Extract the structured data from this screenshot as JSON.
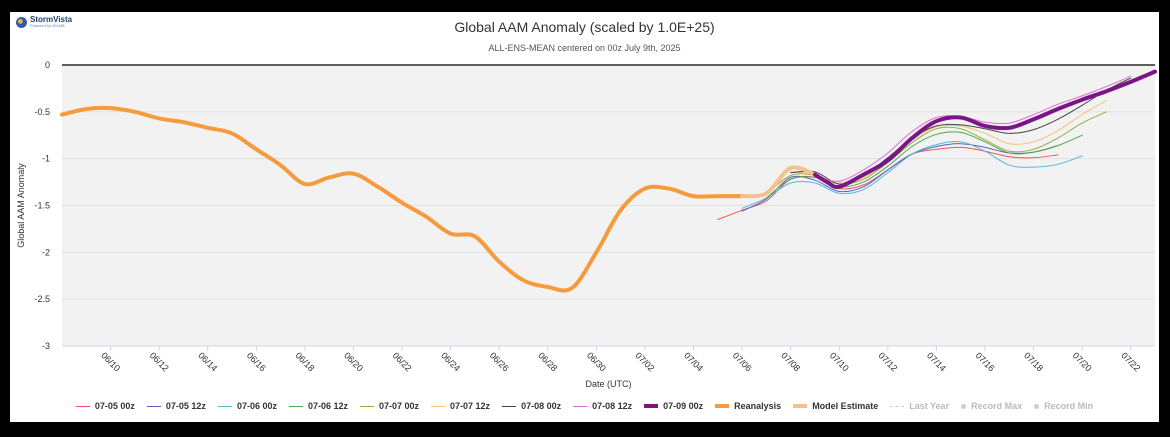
{
  "brand": {
    "name": "StormVista",
    "tagline": "Powered by WXMB"
  },
  "chart_data": {
    "type": "line",
    "title": "Global AAM Anomaly (scaled by 1.0E+25)",
    "subtitle": "ALL-ENS-MEAN centered on 00z July 9th, 2025",
    "xlabel": "Date (UTC)",
    "ylabel": "Global AAM Anomaly",
    "x_range": [
      "2025-06-08",
      "2025-07-23"
    ],
    "ylim": [
      -3,
      0
    ],
    "yticks": [
      0,
      -0.5,
      -1,
      -1.5,
      -2,
      -2.5,
      -3
    ],
    "xticks": [
      "06/10",
      "06/12",
      "06/14",
      "06/16",
      "06/18",
      "06/20",
      "06/22",
      "06/24",
      "06/26",
      "06/28",
      "06/30",
      "07/02",
      "07/04",
      "07/06",
      "07/08",
      "07/10",
      "07/12",
      "07/14",
      "07/16",
      "07/18",
      "07/20",
      "07/22"
    ],
    "plot_background": "#f2f2f2",
    "legend_position": "bottom",
    "series": [
      {
        "name": "07-05 00z",
        "color": "#e8575a",
        "width": 1,
        "points": [
          [
            "2025-07-05",
            -1.65
          ],
          [
            "2025-07-06",
            -1.55
          ],
          [
            "2025-07-07",
            -1.45
          ],
          [
            "2025-07-08",
            -1.22
          ],
          [
            "2025-07-09",
            -1.2
          ],
          [
            "2025-07-10",
            -1.32
          ],
          [
            "2025-07-11",
            -1.28
          ],
          [
            "2025-07-12",
            -1.12
          ],
          [
            "2025-07-13",
            -0.95
          ],
          [
            "2025-07-14",
            -0.9
          ],
          [
            "2025-07-15",
            -0.88
          ],
          [
            "2025-07-16",
            -0.92
          ],
          [
            "2025-07-17",
            -0.98
          ],
          [
            "2025-07-18",
            -0.99
          ],
          [
            "2025-07-19",
            -0.96
          ]
        ]
      },
      {
        "name": "07-05 12z",
        "color": "#5b5ec9",
        "width": 1,
        "points": [
          [
            "2025-07-06",
            -1.56
          ],
          [
            "2025-07-07",
            -1.43
          ],
          [
            "2025-07-08",
            -1.2
          ],
          [
            "2025-07-09",
            -1.23
          ],
          [
            "2025-07-10",
            -1.35
          ],
          [
            "2025-07-11",
            -1.3
          ],
          [
            "2025-07-12",
            -1.12
          ],
          [
            "2025-07-13",
            -0.95
          ],
          [
            "2025-07-14",
            -0.87
          ],
          [
            "2025-07-15",
            -0.84
          ],
          [
            "2025-07-16",
            -0.88
          ],
          [
            "2025-07-17",
            -0.94
          ],
          [
            "2025-07-18",
            -0.93
          ],
          [
            "2025-07-19",
            -0.86
          ]
        ]
      },
      {
        "name": "07-06 00z",
        "color": "#55b8d8",
        "width": 1,
        "points": [
          [
            "2025-07-06",
            -1.53
          ],
          [
            "2025-07-07",
            -1.42
          ],
          [
            "2025-07-08",
            -1.26
          ],
          [
            "2025-07-09",
            -1.26
          ],
          [
            "2025-07-10",
            -1.37
          ],
          [
            "2025-07-11",
            -1.33
          ],
          [
            "2025-07-12",
            -1.15
          ],
          [
            "2025-07-13",
            -0.95
          ],
          [
            "2025-07-14",
            -0.85
          ],
          [
            "2025-07-15",
            -0.82
          ],
          [
            "2025-07-16",
            -0.92
          ],
          [
            "2025-07-17",
            -1.07
          ],
          [
            "2025-07-18",
            -1.09
          ],
          [
            "2025-07-19",
            -1.06
          ],
          [
            "2025-07-20",
            -0.97
          ]
        ]
      },
      {
        "name": "07-06 12z",
        "color": "#4da84d",
        "width": 1,
        "points": [
          [
            "2025-07-07",
            -1.42
          ],
          [
            "2025-07-08",
            -1.22
          ],
          [
            "2025-07-09",
            -1.2
          ],
          [
            "2025-07-10",
            -1.3
          ],
          [
            "2025-07-11",
            -1.25
          ],
          [
            "2025-07-12",
            -1.08
          ],
          [
            "2025-07-13",
            -0.87
          ],
          [
            "2025-07-14",
            -0.74
          ],
          [
            "2025-07-15",
            -0.72
          ],
          [
            "2025-07-16",
            -0.82
          ],
          [
            "2025-07-17",
            -0.94
          ],
          [
            "2025-07-18",
            -0.93
          ],
          [
            "2025-07-19",
            -0.86
          ],
          [
            "2025-07-20",
            -0.75
          ]
        ]
      },
      {
        "name": "07-07 00z",
        "color": "#9aab3a",
        "width": 1,
        "points": [
          [
            "2025-07-07",
            -1.38
          ],
          [
            "2025-07-08",
            -1.18
          ],
          [
            "2025-07-09",
            -1.18
          ],
          [
            "2025-07-10",
            -1.27
          ],
          [
            "2025-07-11",
            -1.22
          ],
          [
            "2025-07-12",
            -1.04
          ],
          [
            "2025-07-13",
            -0.83
          ],
          [
            "2025-07-14",
            -0.68
          ],
          [
            "2025-07-15",
            -0.68
          ],
          [
            "2025-07-16",
            -0.8
          ],
          [
            "2025-07-17",
            -0.92
          ],
          [
            "2025-07-18",
            -0.9
          ],
          [
            "2025-07-19",
            -0.78
          ],
          [
            "2025-07-20",
            -0.62
          ],
          [
            "2025-07-21",
            -0.5
          ]
        ]
      },
      {
        "name": "07-07 12z",
        "color": "#f5c07a",
        "width": 1,
        "points": [
          [
            "2025-07-08",
            -1.14
          ],
          [
            "2025-07-09",
            -1.17
          ],
          [
            "2025-07-10",
            -1.25
          ],
          [
            "2025-07-11",
            -1.2
          ],
          [
            "2025-07-12",
            -1.02
          ],
          [
            "2025-07-13",
            -0.8
          ],
          [
            "2025-07-14",
            -0.66
          ],
          [
            "2025-07-15",
            -0.65
          ],
          [
            "2025-07-16",
            -0.73
          ],
          [
            "2025-07-17",
            -0.84
          ],
          [
            "2025-07-18",
            -0.82
          ],
          [
            "2025-07-19",
            -0.7
          ],
          [
            "2025-07-20",
            -0.53
          ],
          [
            "2025-07-21",
            -0.38
          ]
        ]
      },
      {
        "name": "07-08 00z",
        "color": "#444444",
        "width": 1,
        "points": [
          [
            "2025-07-08",
            -1.15
          ],
          [
            "2025-07-09",
            -1.14
          ],
          [
            "2025-07-10",
            -1.27
          ],
          [
            "2025-07-11",
            -1.18
          ],
          [
            "2025-07-12",
            -0.99
          ],
          [
            "2025-07-13",
            -0.78
          ],
          [
            "2025-07-14",
            -0.65
          ],
          [
            "2025-07-15",
            -0.64
          ],
          [
            "2025-07-16",
            -0.68
          ],
          [
            "2025-07-17",
            -0.73
          ],
          [
            "2025-07-18",
            -0.69
          ],
          [
            "2025-07-19",
            -0.58
          ],
          [
            "2025-07-20",
            -0.43
          ],
          [
            "2025-07-21",
            -0.27
          ],
          [
            "2025-07-22",
            -0.14
          ]
        ]
      },
      {
        "name": "07-08 12z",
        "color": "#e06be0",
        "width": 1,
        "points": [
          [
            "2025-07-09",
            -1.2
          ],
          [
            "2025-07-10",
            -1.24
          ],
          [
            "2025-07-11",
            -1.12
          ],
          [
            "2025-07-12",
            -0.94
          ],
          [
            "2025-07-13",
            -0.71
          ],
          [
            "2025-07-14",
            -0.56
          ],
          [
            "2025-07-15",
            -0.55
          ],
          [
            "2025-07-16",
            -0.61
          ],
          [
            "2025-07-17",
            -0.62
          ],
          [
            "2025-07-18",
            -0.53
          ],
          [
            "2025-07-19",
            -0.42
          ],
          [
            "2025-07-20",
            -0.33
          ],
          [
            "2025-07-21",
            -0.23
          ],
          [
            "2025-07-22",
            -0.12
          ]
        ]
      },
      {
        "name": "07-09 00z",
        "color": "#7a1585",
        "width": 4,
        "points": [
          [
            "2025-07-09",
            -1.17
          ],
          [
            "2025-07-09T12",
            -1.25
          ],
          [
            "2025-07-10",
            -1.3
          ],
          [
            "2025-07-11",
            -1.17
          ],
          [
            "2025-07-12",
            -1.02
          ],
          [
            "2025-07-13",
            -0.78
          ],
          [
            "2025-07-14",
            -0.6
          ],
          [
            "2025-07-15",
            -0.56
          ],
          [
            "2025-07-16",
            -0.65
          ],
          [
            "2025-07-17",
            -0.67
          ],
          [
            "2025-07-18",
            -0.58
          ],
          [
            "2025-07-19",
            -0.47
          ],
          [
            "2025-07-20",
            -0.37
          ],
          [
            "2025-07-21",
            -0.28
          ],
          [
            "2025-07-22",
            -0.18
          ],
          [
            "2025-07-23",
            -0.07
          ]
        ]
      },
      {
        "name": "Reanalysis",
        "color": "#f59b3d",
        "width": 4,
        "points": [
          [
            "2025-06-08",
            -0.53
          ],
          [
            "2025-06-09",
            -0.47
          ],
          [
            "2025-06-10",
            -0.46
          ],
          [
            "2025-06-11",
            -0.5
          ],
          [
            "2025-06-12",
            -0.57
          ],
          [
            "2025-06-13",
            -0.61
          ],
          [
            "2025-06-14",
            -0.67
          ],
          [
            "2025-06-15",
            -0.73
          ],
          [
            "2025-06-16",
            -0.9
          ],
          [
            "2025-06-17",
            -1.07
          ],
          [
            "2025-06-18",
            -1.27
          ],
          [
            "2025-06-19",
            -1.2
          ],
          [
            "2025-06-20",
            -1.16
          ],
          [
            "2025-06-21",
            -1.3
          ],
          [
            "2025-06-22",
            -1.47
          ],
          [
            "2025-06-23",
            -1.62
          ],
          [
            "2025-06-24",
            -1.8
          ],
          [
            "2025-06-25",
            -1.83
          ],
          [
            "2025-06-26",
            -2.1
          ],
          [
            "2025-06-27",
            -2.3
          ],
          [
            "2025-06-28",
            -2.37
          ],
          [
            "2025-06-29",
            -2.38
          ],
          [
            "2025-06-30",
            -2.0
          ],
          [
            "2025-07-01",
            -1.55
          ],
          [
            "2025-07-02",
            -1.32
          ],
          [
            "2025-07-03",
            -1.32
          ],
          [
            "2025-07-04",
            -1.4
          ],
          [
            "2025-07-05",
            -1.4
          ],
          [
            "2025-07-06",
            -1.4
          ]
        ]
      },
      {
        "name": "Model Estimate",
        "color": "#f4c08c",
        "width": 4,
        "points": [
          [
            "2025-07-06",
            -1.4
          ],
          [
            "2025-07-07",
            -1.37
          ],
          [
            "2025-07-08",
            -1.1
          ],
          [
            "2025-07-09",
            -1.17
          ]
        ]
      }
    ],
    "legend_extra": [
      {
        "name": "Last Year",
        "kind": "dash"
      },
      {
        "name": "Record Max",
        "kind": "dot"
      },
      {
        "name": "Record Min",
        "kind": "dot"
      }
    ]
  }
}
